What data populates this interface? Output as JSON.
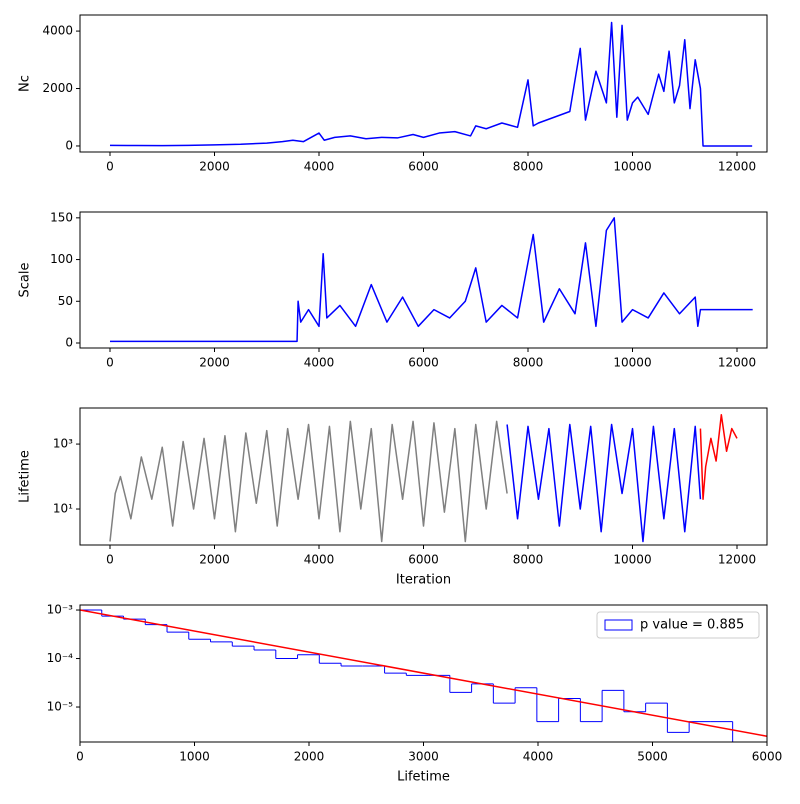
{
  "chart_data": [
    {
      "type": "line",
      "ylabel": "Nc",
      "xlim": [
        -574,
        12574
      ],
      "ylim": [
        -210,
        4560
      ],
      "xticks": [
        0,
        2000,
        4000,
        6000,
        8000,
        10000,
        12000
      ],
      "yticks": [
        0,
        2000,
        4000
      ],
      "series": [
        {
          "color": "#0000ff",
          "x": [
            0,
            500,
            1000,
            1500,
            2000,
            2500,
            3000,
            3300,
            3500,
            3700,
            4000,
            4100,
            4300,
            4600,
            4900,
            5200,
            5500,
            5800,
            6000,
            6300,
            6600,
            6900,
            7000,
            7200,
            7500,
            7800,
            8000,
            8100,
            8200,
            8500,
            8800,
            9000,
            9100,
            9300,
            9500,
            9600,
            9700,
            9800,
            9900,
            10000,
            10100,
            10300,
            10500,
            10600,
            10700,
            10800,
            10900,
            11000,
            11100,
            11200,
            11300,
            11350,
            11400,
            12290
          ],
          "values": [
            20,
            15,
            10,
            20,
            40,
            60,
            100,
            150,
            200,
            150,
            450,
            200,
            300,
            350,
            250,
            300,
            280,
            400,
            300,
            450,
            500,
            350,
            700,
            600,
            800,
            650,
            2300,
            700,
            800,
            1000,
            1200,
            3400,
            900,
            2600,
            1500,
            4300,
            1000,
            4200,
            900,
            1500,
            1700,
            1100,
            2500,
            1900,
            3300,
            1500,
            2100,
            3700,
            1300,
            3000,
            2000,
            0,
            0,
            0
          ]
        }
      ]
    },
    {
      "type": "line",
      "ylabel": "Scale",
      "xlim": [
        -574,
        12574
      ],
      "ylim": [
        -6,
        157
      ],
      "xticks": [
        0,
        2000,
        4000,
        6000,
        8000,
        10000,
        12000
      ],
      "yticks": [
        0,
        50,
        100,
        150
      ],
      "series": [
        {
          "color": "#0000ff",
          "x": [
            0,
            3580,
            3600,
            3650,
            3800,
            4000,
            4080,
            4150,
            4400,
            4700,
            5000,
            5300,
            5600,
            5900,
            6200,
            6500,
            6800,
            7000,
            7200,
            7500,
            7800,
            8100,
            8300,
            8600,
            8900,
            9100,
            9300,
            9500,
            9650,
            9800,
            10000,
            10300,
            10600,
            10900,
            11200,
            11250,
            11300,
            12300
          ],
          "values": [
            2,
            2,
            50,
            25,
            40,
            20,
            107,
            30,
            45,
            20,
            70,
            25,
            55,
            20,
            40,
            30,
            50,
            90,
            25,
            45,
            30,
            130,
            25,
            65,
            35,
            120,
            20,
            135,
            150,
            25,
            40,
            30,
            60,
            35,
            55,
            20,
            40,
            40
          ]
        }
      ]
    },
    {
      "type": "line",
      "ylabel": "Lifetime",
      "xlabel": "Iteration",
      "ylog": true,
      "xlim": [
        -574,
        12574
      ],
      "ylim": [
        0.78,
        12900
      ],
      "xticks": [
        0,
        2000,
        4000,
        6000,
        8000,
        10000,
        12000
      ],
      "yticks": [
        {
          "value": 10,
          "label": "10¹"
        },
        {
          "value": 1000,
          "label": "10³"
        }
      ],
      "series": [
        {
          "color": "#808080",
          "x": [
            0,
            100,
            200,
            400,
            600,
            800,
            1000,
            1200,
            1400,
            1600,
            1800,
            2000,
            2200,
            2400,
            2600,
            2800,
            3000,
            3200,
            3400,
            3600,
            3800,
            4000,
            4200,
            4400,
            4600,
            4800,
            5000,
            5200,
            5400,
            5600,
            5800,
            6000,
            6200,
            6400,
            6600,
            6800,
            7000,
            7200,
            7400,
            7600
          ],
          "values": [
            1,
            30,
            100,
            5,
            400,
            20,
            800,
            3,
            1200,
            10,
            1500,
            5,
            1800,
            2,
            2200,
            15,
            2600,
            3,
            3000,
            20,
            4000,
            5,
            3500,
            2,
            5000,
            10,
            3000,
            1,
            4000,
            20,
            5000,
            3,
            4500,
            8,
            3000,
            1,
            4000,
            10,
            5000,
            30
          ]
        },
        {
          "color": "#0000ff",
          "x": [
            7600,
            7800,
            8000,
            8200,
            8400,
            8600,
            8800,
            9000,
            9200,
            9400,
            9600,
            9800,
            10000,
            10200,
            10400,
            10600,
            10800,
            11000,
            11200,
            11300
          ],
          "values": [
            4000,
            5,
            3500,
            20,
            3000,
            3,
            4000,
            10,
            3500,
            2,
            4000,
            30,
            3000,
            1,
            3500,
            5,
            3000,
            2,
            3500,
            20
          ]
        },
        {
          "color": "#ff0000",
          "x": [
            11300,
            11350,
            11400,
            11500,
            11600,
            11700,
            11800,
            11900,
            12000
          ],
          "values": [
            3000,
            20,
            200,
            1500,
            300,
            8000,
            600,
            3000,
            1500
          ]
        }
      ]
    },
    {
      "type": "histogram",
      "xlabel": "Lifetime",
      "ylog": true,
      "xlim": [
        0,
        6000
      ],
      "ylim": [
        1.9e-06,
        0.00127
      ],
      "xticks": [
        0,
        1000,
        2000,
        3000,
        4000,
        5000,
        6000
      ],
      "yticks": [
        {
          "value": 1e-05,
          "label": "10⁻⁵"
        },
        {
          "value": 0.0001,
          "label": "10⁻⁴"
        },
        {
          "value": 0.001,
          "label": "10⁻³"
        }
      ],
      "legend": "upper right",
      "name": "p value = 0.885",
      "color": "#0000ff",
      "bins": [
        0,
        190,
        380,
        570,
        760,
        950,
        1140,
        1330,
        1520,
        1710,
        1900,
        2090,
        2280,
        2470,
        2660,
        2850,
        3040,
        3230,
        3420,
        3610,
        3800,
        3990,
        4180,
        4370,
        4560,
        4750,
        4940,
        5130,
        5320,
        5510,
        5700
      ],
      "counts": [
        0.001,
        0.00075,
        0.00065,
        0.0005,
        0.00035,
        0.00025,
        0.00022,
        0.00018,
        0.00015,
        0.0001,
        0.00012,
        8e-05,
        7e-05,
        7e-05,
        5e-05,
        4.5e-05,
        4.5e-05,
        2e-05,
        3e-05,
        1.2e-05,
        2.5e-05,
        5e-06,
        1.5e-05,
        5e-06,
        2.2e-05,
        8e-06,
        1.2e-05,
        3e-06,
        5e-06,
        5e-06
      ],
      "fit": {
        "color": "#ff0000",
        "x": [
          0,
          6000
        ],
        "values": [
          0.001,
          2.5e-06
        ]
      }
    }
  ]
}
